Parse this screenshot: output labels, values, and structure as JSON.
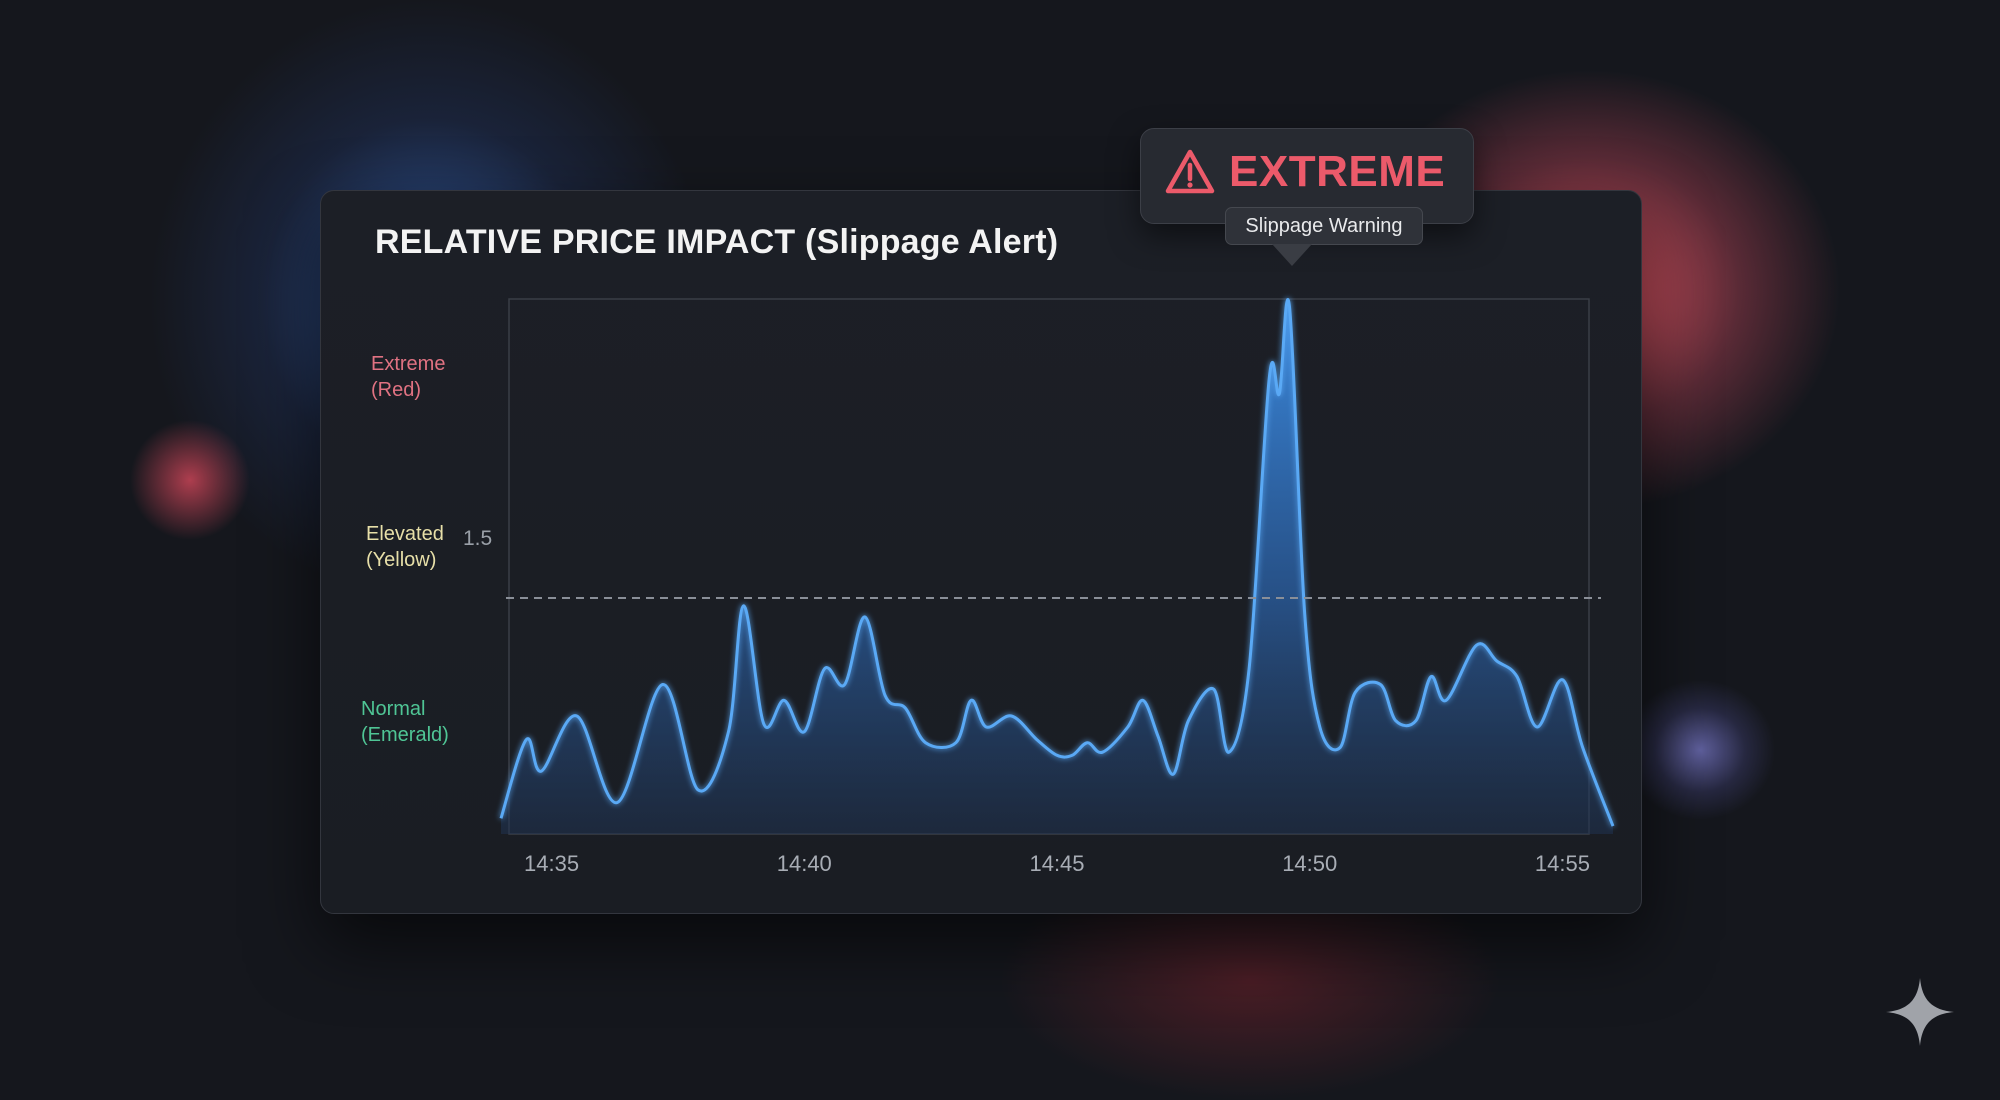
{
  "colors": {
    "background": "#15171d",
    "card": "#1b1e24",
    "line": "#5aa9f5",
    "area_top": "#3d8fe8",
    "area_bottom": "#1f3250",
    "extreme": "#ec5a6a",
    "elevated": "#e7dfa8",
    "normal": "#4fc595"
  },
  "alert": {
    "icon": "warning-triangle-icon",
    "title": "EXTREME",
    "subtitle": "Slippage Warning"
  },
  "chart_data": {
    "type": "area",
    "title": "RELATIVE PRICE IMPACT (Slippage Alert)",
    "xlabel": "",
    "ylabel": "",
    "x_ticks": [
      "14:35",
      "14:40",
      "14:45",
      "14:50",
      "14:55"
    ],
    "x_range": [
      "14:34",
      "14:56"
    ],
    "ylim": [
      0,
      3.4
    ],
    "grid": false,
    "legend": "none",
    "threshold": {
      "value": 1.5,
      "label": "1.5",
      "style": "dashed"
    },
    "bands": [
      {
        "label_line1": "Extreme",
        "label_line2": "(Red)",
        "color": "#e07282"
      },
      {
        "label_line1": "Elevated",
        "label_line2": "(Yellow)",
        "color": "#e7dfa8"
      },
      {
        "label_line1": "Normal",
        "label_line2": "(Emerald)",
        "color": "#4fc595"
      }
    ],
    "series": [
      {
        "values": [
          [
            0,
            0.1
          ],
          [
            0.5,
            0.6
          ],
          [
            0.8,
            0.4
          ],
          [
            1.5,
            0.75
          ],
          [
            2.3,
            0.2
          ],
          [
            3.2,
            0.95
          ],
          [
            3.9,
            0.28
          ],
          [
            4.5,
            0.65
          ],
          [
            4.8,
            1.45
          ],
          [
            5.2,
            0.7
          ],
          [
            5.6,
            0.85
          ],
          [
            6.0,
            0.65
          ],
          [
            6.4,
            1.05
          ],
          [
            6.8,
            0.95
          ],
          [
            7.2,
            1.38
          ],
          [
            7.6,
            0.88
          ],
          [
            8.0,
            0.8
          ],
          [
            8.4,
            0.58
          ],
          [
            9.0,
            0.58
          ],
          [
            9.3,
            0.85
          ],
          [
            9.6,
            0.68
          ],
          [
            10.1,
            0.75
          ],
          [
            10.6,
            0.6
          ],
          [
            11.0,
            0.5
          ],
          [
            11.3,
            0.5
          ],
          [
            11.6,
            0.58
          ],
          [
            11.9,
            0.52
          ],
          [
            12.4,
            0.68
          ],
          [
            12.7,
            0.85
          ],
          [
            13.0,
            0.62
          ],
          [
            13.3,
            0.38
          ],
          [
            13.6,
            0.72
          ],
          [
            14.1,
            0.92
          ],
          [
            14.4,
            0.52
          ],
          [
            14.8,
            1.05
          ],
          [
            15.2,
            2.9
          ],
          [
            15.4,
            2.8
          ],
          [
            15.6,
            3.35
          ],
          [
            15.9,
            1.4
          ],
          [
            16.2,
            0.68
          ],
          [
            16.6,
            0.55
          ],
          [
            16.9,
            0.9
          ],
          [
            17.4,
            0.95
          ],
          [
            17.7,
            0.72
          ],
          [
            18.1,
            0.72
          ],
          [
            18.4,
            1.0
          ],
          [
            18.7,
            0.85
          ],
          [
            19.3,
            1.2
          ],
          [
            19.7,
            1.1
          ],
          [
            20.1,
            1.0
          ],
          [
            20.5,
            0.68
          ],
          [
            21.0,
            0.98
          ],
          [
            21.4,
            0.55
          ],
          [
            22.0,
            0.05
          ]
        ]
      }
    ]
  }
}
